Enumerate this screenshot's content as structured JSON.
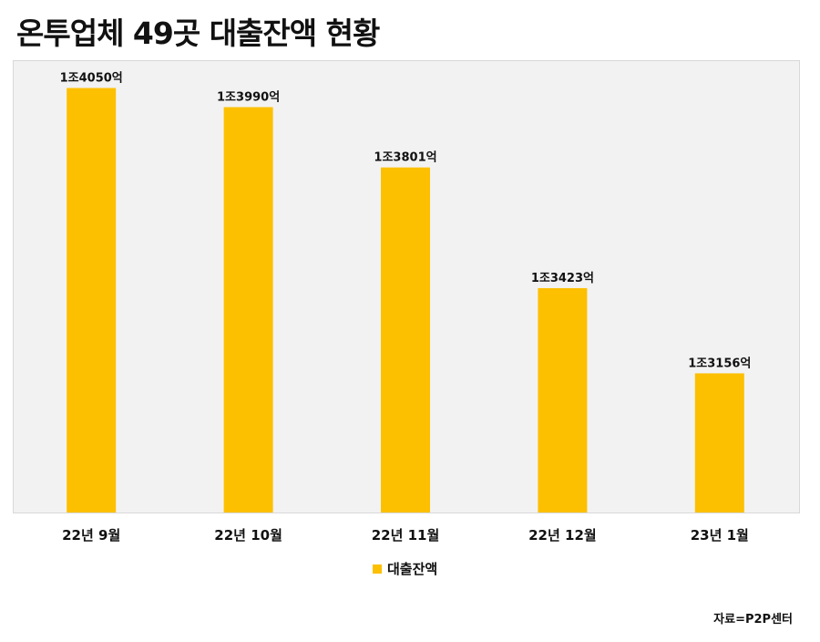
{
  "chart_data": {
    "type": "bar",
    "title": "온투업체 49곳 대출잔액 현황",
    "categories": [
      "22년 9월",
      "22년 10월",
      "22년 11월",
      "22년 12월",
      "23년 1월"
    ],
    "series": [
      {
        "name": "대출잔액",
        "values": [
          14050,
          13990,
          13801,
          13423,
          13156
        ],
        "labels": [
          "1조4050억",
          "1조3990억",
          "1조3801억",
          "1조3423억",
          "1조3156억"
        ]
      }
    ],
    "unit": "억",
    "ylim": [
      12720,
      14120
    ],
    "grid": false,
    "legend_position": "bottom-center",
    "source": "자료=P2P센터",
    "colors": {
      "bar": "#fcc000",
      "plot_bg": "#f2f2f2"
    }
  }
}
